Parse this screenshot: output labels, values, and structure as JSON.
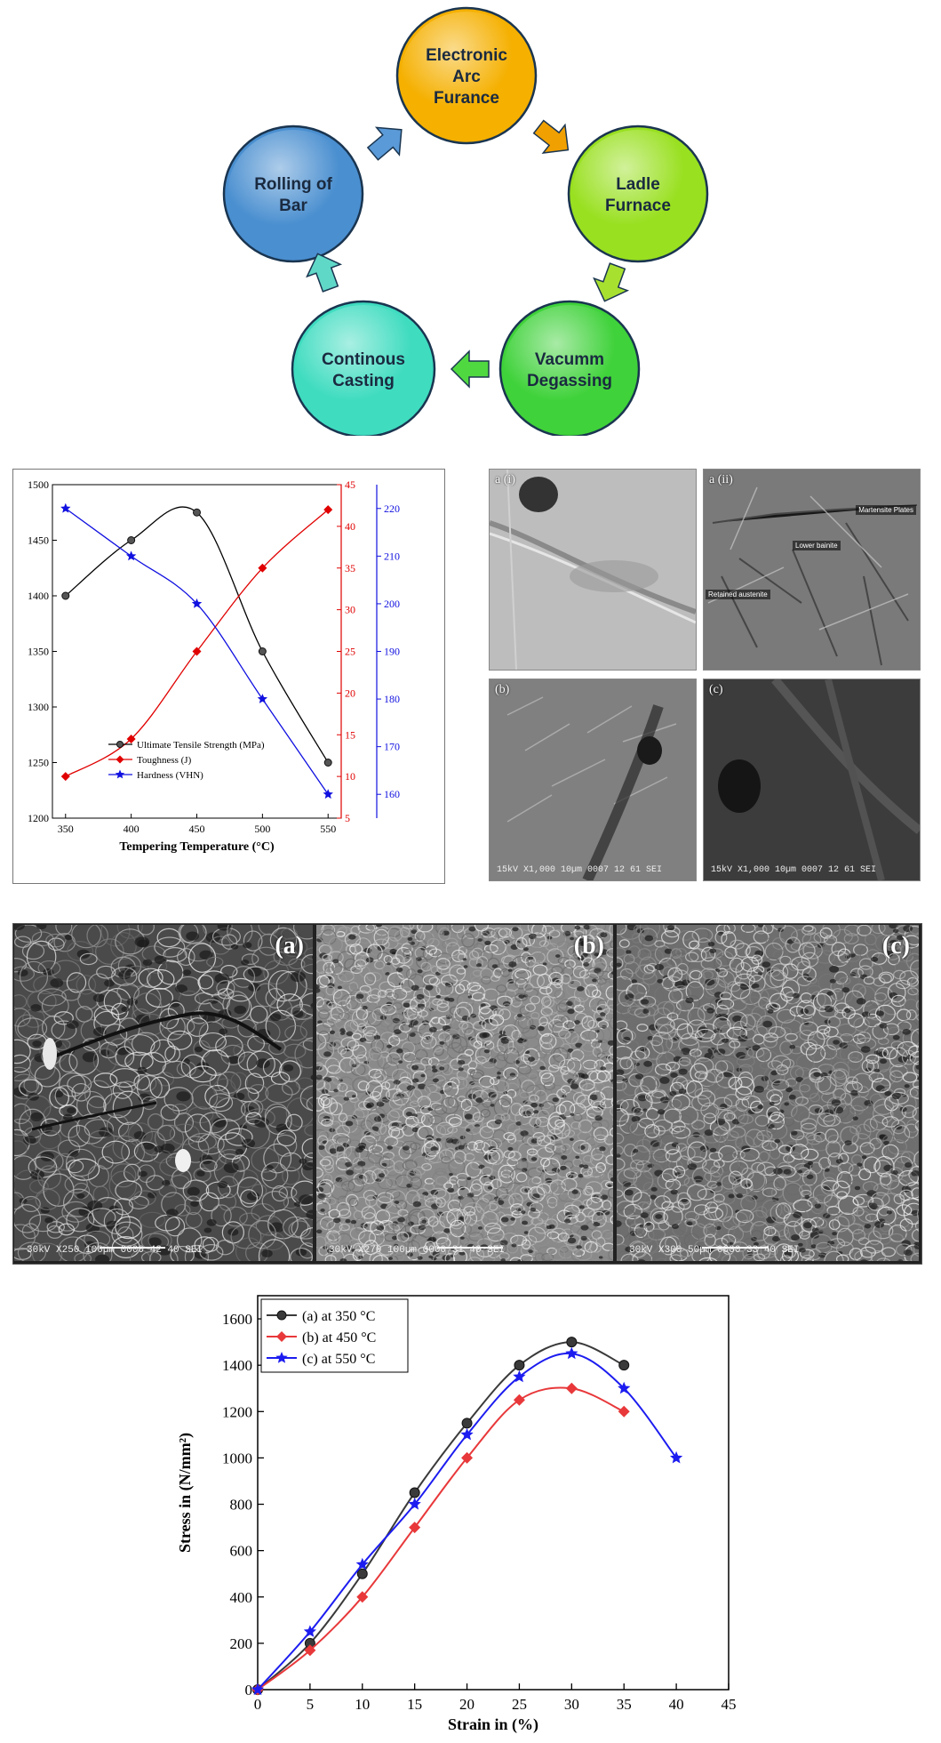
{
  "flow": {
    "steps": [
      {
        "label_lines": [
          "Electronic",
          "Arc",
          "Furance"
        ],
        "color": "#f5b000"
      },
      {
        "label_lines": [
          "Ladle",
          "Furnace"
        ],
        "color": "#99e020"
      },
      {
        "label_lines": [
          "Vacumm",
          "Degassing"
        ],
        "color": "#3fd23a"
      },
      {
        "label_lines": [
          "Continous",
          "Casting"
        ],
        "color": "#3fdcc0"
      },
      {
        "label_lines": [
          "Rolling of",
          "Bar"
        ],
        "color": "#4a8fd0"
      }
    ]
  },
  "chart1": {
    "type": "line",
    "xlabel": "Tempering Temperature (°C)",
    "x": [
      350,
      400,
      450,
      500,
      550
    ],
    "x_ticks": [
      350,
      400,
      450,
      500,
      550
    ],
    "y_left": {
      "lim": [
        1200,
        1500
      ],
      "ticks": [
        1200,
        1250,
        1300,
        1350,
        1400,
        1450,
        1500
      ],
      "color": "#000000"
    },
    "y_right1": {
      "lim": [
        5,
        45
      ],
      "ticks": [
        5,
        10,
        15,
        20,
        25,
        30,
        35,
        40,
        45
      ],
      "color": "#e00000"
    },
    "y_right2": {
      "lim": [
        155,
        225
      ],
      "ticks": [
        160,
        170,
        180,
        190,
        200,
        210,
        220
      ],
      "color": "#1010e0"
    },
    "legend": [
      "Ultimate Tensile Strength (MPa)",
      "Toughness (J)",
      "Hardness (VHN)"
    ],
    "legend_position": "bottom-left"
  },
  "micrographs": {
    "panels": [
      {
        "label": "a (i)",
        "tone": "#b8b8b8",
        "notes": [],
        "scale": ""
      },
      {
        "label": "a (ii)",
        "tone": "#6e6e6e",
        "notes": [
          "Martensite Plates",
          "Lower bainite",
          "Retained austenite"
        ],
        "scale": ""
      },
      {
        "label": "(b)",
        "tone": "#7c7c7c",
        "notes": [],
        "scale": "15kV  X1,000  10µm  0007 12 61 SEI"
      },
      {
        "label": "(c)",
        "tone": "#3a3a3a",
        "notes": [],
        "scale": "15kV  X1,000  10µm  0007 12 61 SEI"
      }
    ]
  },
  "fractographs": {
    "panels": [
      {
        "label": "(a)",
        "tone": "#4a4a4a",
        "scale": "30kV   X250   100µm   0000   42 40 SEI"
      },
      {
        "label": "(b)",
        "tone": "#8a8a8a",
        "scale": "30kV   X270   100µm   0000   31 40 SEI"
      },
      {
        "label": "(c)",
        "tone": "#6e6e6e",
        "scale": "30kV   X300   50µm   0000   33 40 SEI"
      }
    ]
  },
  "chart_data": [
    {
      "type": "line",
      "title": "",
      "xlabel": "Tempering Temperature (°C)",
      "ylabel": "",
      "x": [
        350,
        400,
        450,
        500,
        550
      ],
      "xlim": [
        340,
        560
      ],
      "series": [
        {
          "name": "Ultimate Tensile Strength (MPa)",
          "axis": "left",
          "values": [
            1400,
            1450,
            1475,
            1350,
            1250
          ],
          "color": "#000000",
          "marker": "circle"
        },
        {
          "name": "Toughness (J)",
          "axis": "right1",
          "values": [
            10,
            14.5,
            25,
            35,
            42
          ],
          "color": "#e00000",
          "marker": "diamond"
        },
        {
          "name": "Hardness (VHN)",
          "axis": "right2",
          "values": [
            220,
            210,
            200,
            180,
            160
          ],
          "color": "#1010e0",
          "marker": "star"
        }
      ],
      "ylim_left": [
        1200,
        1500
      ],
      "ylim_right1": [
        5,
        45
      ],
      "ylim_right2": [
        155,
        225
      ],
      "grid": false,
      "legend_position": "bottom-left"
    },
    {
      "type": "line",
      "title": "",
      "xlabel": "Strain in (%)",
      "ylabel": "Stress in (N/mm²)",
      "x_ticks": [
        0,
        5,
        10,
        15,
        20,
        25,
        30,
        35,
        40,
        45
      ],
      "y_ticks": [
        0,
        200,
        400,
        600,
        800,
        1000,
        1200,
        1400,
        1600
      ],
      "xlim": [
        0,
        45
      ],
      "ylim": [
        0,
        1700
      ],
      "grid": false,
      "legend_position": "top-left",
      "series": [
        {
          "name": "(a) at 350 °C",
          "color": "#3a3a3a",
          "marker": "circle",
          "x": [
            0,
            5,
            10,
            15,
            20,
            25,
            30,
            35
          ],
          "values": [
            0,
            200,
            500,
            850,
            1150,
            1400,
            1500,
            1400
          ]
        },
        {
          "name": "(b) at 450 °C",
          "color": "#e8383a",
          "marker": "diamond",
          "x": [
            0,
            5,
            10,
            15,
            20,
            25,
            30,
            35
          ],
          "values": [
            0,
            170,
            400,
            700,
            1000,
            1250,
            1300,
            1200
          ]
        },
        {
          "name": "(c) at 550 °C",
          "color": "#1c1cf0",
          "marker": "star",
          "x": [
            0,
            5,
            10,
            15,
            20,
            25,
            30,
            35,
            40
          ],
          "values": [
            0,
            250,
            540,
            800,
            1100,
            1350,
            1450,
            1300,
            1000
          ]
        }
      ]
    }
  ]
}
